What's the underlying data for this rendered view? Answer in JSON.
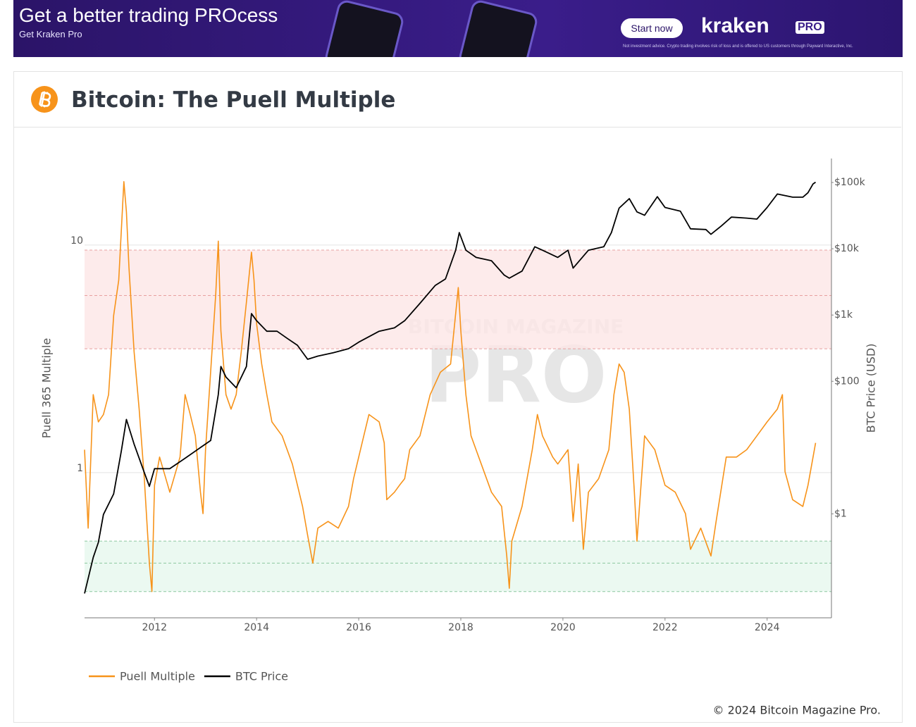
{
  "ad": {
    "headline": "Get a better trading PROcess",
    "subline": "Get Kraken Pro",
    "button": "Start now",
    "brand": "kraken",
    "brand_badge": "PRO",
    "disclaimer": "Not investment advice. Crypto trading involves risk of loss and is offered to US customers through Payward Interactive, Inc."
  },
  "header": {
    "title": "Bitcoin: The Puell Multiple"
  },
  "footer": {
    "copyright": "© 2024 Bitcoin Magazine Pro."
  },
  "chart_data": {
    "type": "line",
    "log_y": true,
    "log_y2": true,
    "ylabel": "Puell 365 Multiple",
    "y2label": "BTC Price (USD)",
    "watermark": [
      "BITCOIN MAGAZINE",
      "PRO"
    ],
    "xlim": [
      2010.63,
      2025.26
    ],
    "xticks": [
      2012,
      2014,
      2016,
      2018,
      2020,
      2022,
      2024
    ],
    "ylim": [
      0.23,
      24
    ],
    "yticks": [
      1,
      10
    ],
    "y2lim": [
      0.027,
      230000
    ],
    "y2ticks": [
      {
        "value": 1,
        "label": "$1"
      },
      {
        "value": 100,
        "label": "$100"
      },
      {
        "value": 1000,
        "label": "$1k"
      },
      {
        "value": 10000,
        "label": "$10k"
      },
      {
        "value": 100000,
        "label": "$100k"
      }
    ],
    "grid": true,
    "bands": [
      {
        "range": [
          3.5,
          9.5
        ],
        "lines": [
          3.5,
          6,
          9.5
        ],
        "color": "#fde6e6",
        "line_color": "#e8a0a0"
      },
      {
        "range": [
          0.3,
          0.5
        ],
        "lines": [
          0.3,
          0.4,
          0.5
        ],
        "color": "#e6f8ee",
        "line_color": "#8cc8a0"
      }
    ],
    "series": [
      {
        "name": "Puell Multiple",
        "color": "#f7931a",
        "x": [
          2010.63,
          2010.7,
          2010.8,
          2010.9,
          2011.0,
          2011.1,
          2011.2,
          2011.3,
          2011.4,
          2011.45,
          2011.5,
          2011.6,
          2011.7,
          2011.8,
          2011.9,
          2011.95,
          2012.0,
          2012.1,
          2012.3,
          2012.5,
          2012.6,
          2012.7,
          2012.8,
          2012.9,
          2012.95,
          2013.0,
          2013.2,
          2013.25,
          2013.3,
          2013.4,
          2013.5,
          2013.6,
          2013.7,
          2013.8,
          2013.9,
          2013.95,
          2014.0,
          2014.1,
          2014.2,
          2014.3,
          2014.5,
          2014.7,
          2014.9,
          2015.0,
          2015.1,
          2015.2,
          2015.4,
          2015.6,
          2015.8,
          2015.9,
          2016.0,
          2016.1,
          2016.2,
          2016.4,
          2016.5,
          2016.55,
          2016.7,
          2016.8,
          2016.9,
          2017.0,
          2017.2,
          2017.4,
          2017.6,
          2017.8,
          2017.95,
          2018.0,
          2018.1,
          2018.2,
          2018.4,
          2018.6,
          2018.8,
          2018.9,
          2018.95,
          2019.0,
          2019.2,
          2019.4,
          2019.5,
          2019.6,
          2019.8,
          2019.9,
          2020.1,
          2020.2,
          2020.3,
          2020.4,
          2020.5,
          2020.7,
          2020.9,
          2021.0,
          2021.1,
          2021.2,
          2021.3,
          2021.4,
          2021.45,
          2021.6,
          2021.8,
          2022.0,
          2022.2,
          2022.4,
          2022.5,
          2022.7,
          2022.9,
          2023.0,
          2023.2,
          2023.4,
          2023.6,
          2023.8,
          2024.0,
          2024.2,
          2024.3,
          2024.35,
          2024.5,
          2024.7,
          2024.8,
          2024.9,
          2024.95
        ],
        "values": [
          1.26,
          0.57,
          2.2,
          1.67,
          1.8,
          2.2,
          4.9,
          7,
          19,
          14,
          8,
          3.4,
          1.9,
          0.94,
          0.4,
          0.3,
          0.88,
          1.17,
          0.82,
          1.17,
          2.2,
          1.8,
          1.45,
          0.82,
          0.66,
          1.26,
          6.1,
          10.4,
          4.2,
          2.2,
          1.9,
          2.2,
          3.4,
          5.6,
          9.3,
          7,
          4.5,
          3,
          2.2,
          1.67,
          1.45,
          1.09,
          0.71,
          0.53,
          0.4,
          0.57,
          0.61,
          0.57,
          0.71,
          0.94,
          1.17,
          1.45,
          1.8,
          1.67,
          1.35,
          0.76,
          0.82,
          0.88,
          0.94,
          1.26,
          1.45,
          2.2,
          2.76,
          3,
          6.5,
          4.2,
          2.2,
          1.45,
          1.09,
          0.82,
          0.71,
          0.43,
          0.31,
          0.5,
          0.71,
          1.26,
          1.8,
          1.45,
          1.17,
          1.09,
          1.26,
          0.61,
          1.09,
          0.46,
          0.82,
          0.94,
          1.26,
          2.2,
          3,
          2.76,
          1.9,
          0.82,
          0.5,
          1.45,
          1.26,
          0.88,
          0.82,
          0.66,
          0.46,
          0.57,
          0.43,
          0.61,
          1.17,
          1.17,
          1.26,
          1.45,
          1.67,
          1.9,
          2.2,
          1.01,
          0.76,
          0.71,
          0.88,
          1.17,
          1.35
        ]
      },
      {
        "name": "BTC Price",
        "color": "#000000",
        "axis": "y2",
        "x": [
          2010.63,
          2010.8,
          2010.9,
          2011.0,
          2011.2,
          2011.35,
          2011.45,
          2011.6,
          2011.8,
          2011.9,
          2012.0,
          2012.3,
          2012.6,
          2012.9,
          2013.1,
          2013.25,
          2013.3,
          2013.4,
          2013.6,
          2013.8,
          2013.9,
          2014.0,
          2014.2,
          2014.4,
          2014.6,
          2014.8,
          2015.0,
          2015.2,
          2015.5,
          2015.8,
          2016.0,
          2016.4,
          2016.7,
          2016.9,
          2017.2,
          2017.5,
          2017.7,
          2017.9,
          2017.97,
          2018.1,
          2018.3,
          2018.6,
          2018.85,
          2018.95,
          2019.2,
          2019.45,
          2019.6,
          2019.9,
          2020.1,
          2020.2,
          2020.5,
          2020.8,
          2020.95,
          2021.1,
          2021.3,
          2021.45,
          2021.6,
          2021.85,
          2022.0,
          2022.3,
          2022.5,
          2022.8,
          2022.9,
          2023.1,
          2023.3,
          2023.6,
          2023.8,
          2024.0,
          2024.2,
          2024.5,
          2024.7,
          2024.8,
          2024.9,
          2024.95
        ],
        "values": [
          0.063,
          0.22,
          0.37,
          0.98,
          2,
          8.9,
          26.6,
          11.3,
          4.2,
          2.6,
          4.8,
          4.8,
          6.9,
          10,
          12.8,
          63,
          167,
          116,
          80,
          167,
          1050,
          820,
          570,
          570,
          445,
          350,
          215,
          240,
          270,
          310,
          390,
          570,
          640,
          820,
          1500,
          2800,
          3500,
          9500,
          17500,
          9500,
          7400,
          6600,
          4000,
          3600,
          4600,
          10700,
          9500,
          7400,
          9500,
          5100,
          9500,
          10700,
          17500,
          41000,
          57000,
          36000,
          32000,
          61000,
          42000,
          37000,
          20000,
          19500,
          16500,
          22000,
          30000,
          29000,
          28000,
          42000,
          67000,
          60000,
          60000,
          70000,
          95000,
          101000
        ]
      }
    ]
  }
}
